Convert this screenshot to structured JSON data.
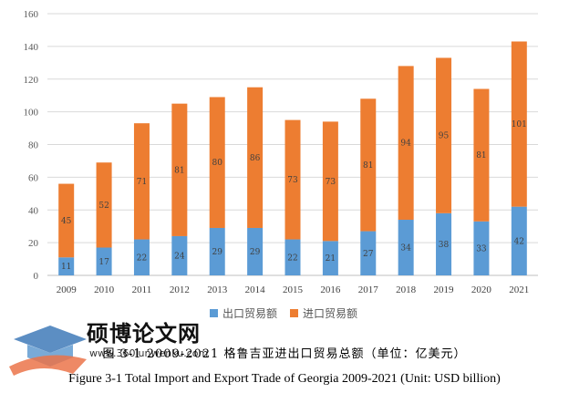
{
  "chart_data": {
    "type": "bar",
    "stacked": true,
    "categories": [
      "2009",
      "2010",
      "2011",
      "2012",
      "2013",
      "2014",
      "2015",
      "2016",
      "2017",
      "2018",
      "2019",
      "2020",
      "2021"
    ],
    "series": [
      {
        "name": "出口贸易额",
        "color": "#5b9bd5",
        "values": [
          11,
          17,
          22,
          24,
          29,
          29,
          22,
          21,
          27,
          34,
          38,
          33,
          42
        ]
      },
      {
        "name": "进口贸易额",
        "color": "#ed7d31",
        "values": [
          45,
          52,
          71,
          81,
          80,
          86,
          73,
          73,
          81,
          94,
          95,
          81,
          101
        ]
      }
    ],
    "ylim": [
      0,
      160
    ],
    "yticks": [
      0,
      20,
      40,
      60,
      80,
      100,
      120,
      140,
      160
    ],
    "grid": true,
    "legend_position": "bottom"
  },
  "caption_cn": "图 3-1 2009-2021 格鲁吉亚进出口贸易总额（单位：亿美元）",
  "caption_en": "Figure 3-1 Total Import and Export Trade of Georgia 2009-2021 (Unit: USD billion)",
  "watermark": {
    "text": "硕博论文网",
    "url": "www.360lunwenku.com"
  }
}
